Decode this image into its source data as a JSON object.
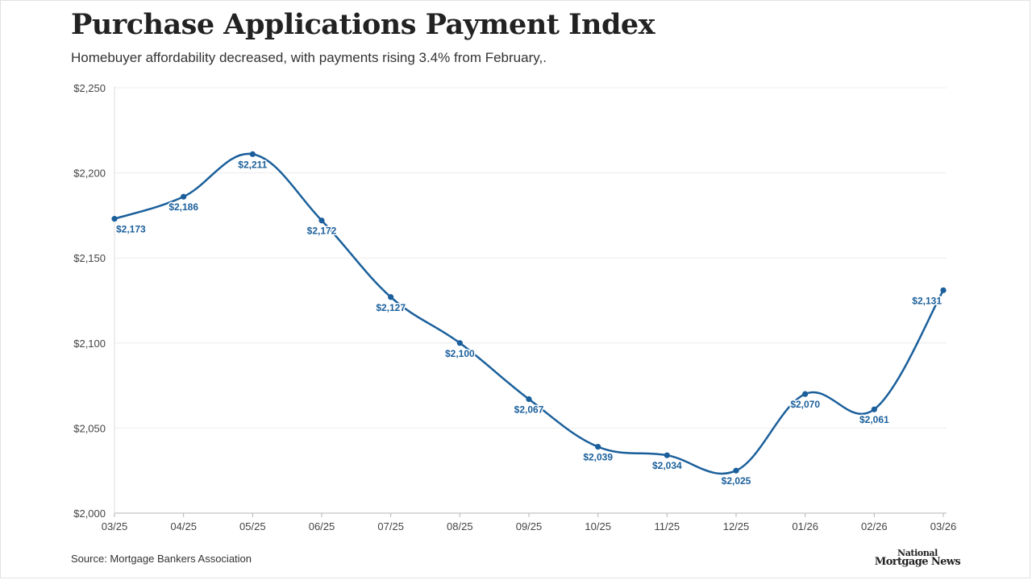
{
  "chart_data": {
    "type": "line",
    "title": "Purchase Applications Payment Index",
    "subtitle": "Homebuyer affordability decreased, with payments rising 3.4% from February,.",
    "categories": [
      "03/25",
      "04/25",
      "05/25",
      "06/25",
      "07/25",
      "08/25",
      "09/25",
      "10/25",
      "11/25",
      "12/25",
      "01/26",
      "02/26",
      "03/26"
    ],
    "series": [
      {
        "values": [
          2173,
          2186,
          2211,
          2172,
          2127,
          2100,
          2067,
          2039,
          2034,
          2025,
          2070,
          2061,
          2131
        ],
        "labels": [
          "$2,173",
          "$2,186",
          "$2,211",
          "$2,172",
          "$2,127",
          "$2,100",
          "$2,067",
          "$2,039",
          "$2,034",
          "$2,025",
          "$2,070",
          "$2,061",
          "$2,131"
        ]
      }
    ],
    "ylim": [
      2000,
      2250
    ],
    "yticks": [
      2000,
      2050,
      2100,
      2150,
      2200,
      2250
    ],
    "ytick_labels": [
      "$2,000",
      "$2,050",
      "$2,100",
      "$2,150",
      "$2,200",
      "$2,250"
    ],
    "grid": true,
    "line_color": "#1a5f9b",
    "label_color": "#1a5f9b"
  },
  "source": "Source: Mortgage Bankers Association",
  "logo": {
    "line1": "National",
    "line2": "Mortgage News"
  }
}
